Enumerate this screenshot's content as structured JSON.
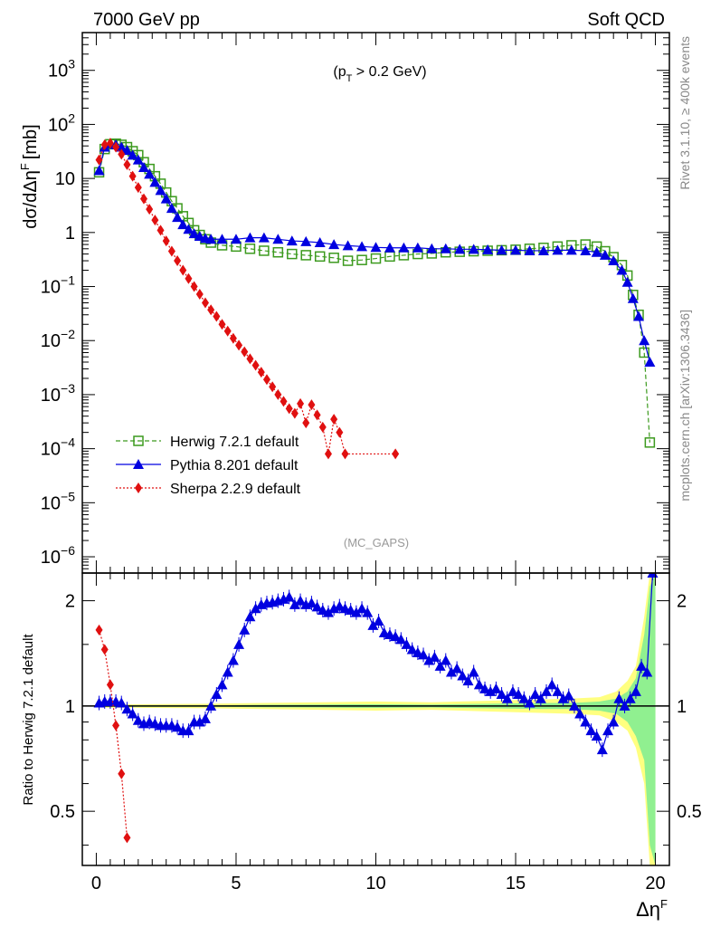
{
  "header": {
    "left": "7000 GeV pp",
    "right": "Soft QCD"
  },
  "side_labels": {
    "rivet": "Rivet 3.1.10, ≥ 400k events",
    "mcplots": "mcplots.cern.ch [arXiv:1306.3436]"
  },
  "watermark": "(MC_GAPS)",
  "colors": {
    "herwig": "#3c9a1e",
    "pythia": "#0000e0",
    "sherpa": "#e01010",
    "band_inner": "#90f090",
    "band_outer": "#ffff80"
  },
  "chart_data": [
    {
      "type": "scatter",
      "panel": "main",
      "ylabel": "dσ/dΔη",
      "ylabel_sup": "F",
      "ylabel_unit": "[mb]",
      "annotation": "(p_T > 0.2 GeV)",
      "annotation_parts": {
        "open": "(p",
        "sub": "T",
        "close": " > 0.2 GeV)"
      },
      "yscale": "log",
      "ylim": [
        5e-07,
        5000
      ],
      "xlim": [
        -0.5,
        20.5
      ],
      "yticks": [
        {
          "v": 1000,
          "label": "10",
          "exp": "3"
        },
        {
          "v": 100,
          "label": "10",
          "exp": "2"
        },
        {
          "v": 10,
          "label": "10",
          "exp": ""
        },
        {
          "v": 1,
          "label": "1",
          "exp": ""
        },
        {
          "v": 0.1,
          "label": "10",
          "exp": "−1"
        },
        {
          "v": 0.01,
          "label": "10",
          "exp": "−2"
        },
        {
          "v": 0.001,
          "label": "10",
          "exp": "−3"
        },
        {
          "v": 0.0001,
          "label": "10",
          "exp": "−4"
        },
        {
          "v": 1e-05,
          "label": "10",
          "exp": "−5"
        },
        {
          "v": 1e-06,
          "label": "10",
          "exp": "−6"
        }
      ],
      "legend_position": "lower-left",
      "series": [
        {
          "key": "herwig",
          "name": "Herwig 7.2.1 default",
          "marker": "open-square",
          "line": "dashed",
          "x": [
            0.1,
            0.3,
            0.5,
            0.7,
            0.9,
            1.1,
            1.3,
            1.5,
            1.7,
            1.9,
            2.1,
            2.3,
            2.5,
            2.7,
            2.9,
            3.1,
            3.3,
            3.5,
            3.7,
            3.9,
            4.1,
            4.5,
            5,
            5.5,
            6,
            6.5,
            7,
            7.5,
            8,
            8.5,
            9,
            9.5,
            10,
            10.5,
            11,
            11.5,
            12,
            12.5,
            13,
            13.5,
            14,
            14.5,
            15,
            15.5,
            16,
            16.5,
            17,
            17.5,
            17.9,
            18.2,
            18.5,
            18.8,
            19.0,
            19.2,
            19.4,
            19.6,
            19.8
          ],
          "y": [
            13,
            35,
            43,
            44,
            42,
            38,
            32,
            27,
            20,
            15,
            11,
            8,
            5.5,
            3.8,
            2.8,
            2,
            1.5,
            1.1,
            0.9,
            0.75,
            0.65,
            0.58,
            0.55,
            0.5,
            0.46,
            0.43,
            0.4,
            0.38,
            0.36,
            0.34,
            0.3,
            0.31,
            0.33,
            0.36,
            0.38,
            0.4,
            0.41,
            0.43,
            0.44,
            0.45,
            0.46,
            0.47,
            0.48,
            0.5,
            0.52,
            0.55,
            0.58,
            0.6,
            0.55,
            0.45,
            0.35,
            0.25,
            0.16,
            0.07,
            0.03,
            0.006,
            0.00013
          ]
        },
        {
          "key": "pythia",
          "name": "Pythia 8.201 default",
          "marker": "triangle",
          "line": "solid",
          "x": [
            0.1,
            0.3,
            0.5,
            0.7,
            0.9,
            1.1,
            1.3,
            1.5,
            1.7,
            1.9,
            2.1,
            2.3,
            2.5,
            2.7,
            2.9,
            3.1,
            3.3,
            3.5,
            3.7,
            3.9,
            4.1,
            4.5,
            5,
            5.5,
            6,
            6.5,
            7,
            7.5,
            8,
            8.5,
            9,
            9.5,
            10,
            10.5,
            11,
            11.5,
            12,
            12.5,
            13,
            13.5,
            14,
            14.5,
            15,
            15.5,
            16,
            16.5,
            17,
            17.5,
            17.9,
            18.2,
            18.5,
            18.8,
            19.0,
            19.2,
            19.4,
            19.6,
            19.8
          ],
          "y": [
            14,
            38,
            44,
            42,
            38,
            33,
            27,
            22,
            16,
            12,
            8.5,
            6,
            4.2,
            2.8,
            1.9,
            1.4,
            1.15,
            0.95,
            0.85,
            0.78,
            0.75,
            0.75,
            0.75,
            0.8,
            0.8,
            0.75,
            0.7,
            0.68,
            0.65,
            0.6,
            0.57,
            0.55,
            0.53,
            0.52,
            0.52,
            0.52,
            0.5,
            0.5,
            0.49,
            0.49,
            0.48,
            0.47,
            0.47,
            0.46,
            0.46,
            0.47,
            0.47,
            0.46,
            0.43,
            0.38,
            0.3,
            0.2,
            0.12,
            0.06,
            0.028,
            0.01,
            0.004
          ]
        },
        {
          "key": "sherpa",
          "name": "Sherpa 2.2.9 default",
          "marker": "diamond",
          "line": "dotted",
          "x": [
            0.1,
            0.3,
            0.5,
            0.7,
            0.9,
            1.1,
            1.3,
            1.5,
            1.7,
            1.9,
            2.1,
            2.3,
            2.5,
            2.7,
            2.9,
            3.1,
            3.3,
            3.5,
            3.7,
            3.9,
            4.1,
            4.3,
            4.5,
            4.7,
            4.9,
            5.1,
            5.3,
            5.5,
            5.7,
            5.9,
            6.1,
            6.3,
            6.5,
            6.7,
            6.9,
            7.1,
            7.3,
            7.5,
            7.7,
            7.9,
            8.1,
            8.3,
            8.5,
            8.7,
            8.9,
            10.7
          ],
          "y": [
            22,
            42,
            45,
            38,
            28,
            18,
            11,
            6.8,
            4.2,
            2.7,
            1.7,
            1.1,
            0.7,
            0.45,
            0.3,
            0.2,
            0.14,
            0.1,
            0.072,
            0.05,
            0.037,
            0.028,
            0.02,
            0.015,
            0.011,
            0.0082,
            0.0062,
            0.0046,
            0.0035,
            0.0026,
            0.0019,
            0.0014,
            0.001,
            0.00075,
            0.00055,
            0.00045,
            0.00068,
            0.0003,
            0.00065,
            0.00042,
            0.00025,
            8e-05,
            0.00035,
            0.0002,
            8e-05,
            8e-05
          ]
        }
      ]
    },
    {
      "type": "scatter",
      "panel": "ratio",
      "ylabel": "Ratio to Herwig 7.2.1 default",
      "xlabel": "Δη",
      "xlabel_sup": "F",
      "yscale": "log",
      "ylim": [
        0.35,
        2.4
      ],
      "xlim": [
        -0.5,
        20.5
      ],
      "xticks": [
        0,
        5,
        10,
        15,
        20
      ],
      "yticks": [
        {
          "v": 0.5,
          "label": "0.5"
        },
        {
          "v": 1,
          "label": "1"
        },
        {
          "v": 2,
          "label": "2"
        }
      ],
      "reference_line": 1,
      "band_inner": {
        "x": [
          0,
          4,
          6,
          8,
          10,
          12,
          14,
          16,
          17,
          18,
          18.6,
          19.0,
          19.3,
          19.6,
          19.8,
          20
        ],
        "hi": [
          1.005,
          1.005,
          1.008,
          1.01,
          1.012,
          1.01,
          1.015,
          1.02,
          1.02,
          1.03,
          1.05,
          1.1,
          1.2,
          1.6,
          2.2,
          2.4
        ],
        "lo": [
          0.995,
          0.995,
          0.992,
          0.99,
          0.988,
          0.99,
          0.985,
          0.98,
          0.98,
          0.97,
          0.95,
          0.9,
          0.82,
          0.7,
          0.4,
          0.35
        ]
      },
      "band_outer": {
        "x": [
          0,
          4,
          6,
          8,
          10,
          12,
          14,
          16,
          17,
          18,
          18.6,
          19.0,
          19.3,
          19.6,
          19.8,
          20
        ],
        "hi": [
          1.01,
          1.015,
          1.02,
          1.025,
          1.03,
          1.025,
          1.035,
          1.045,
          1.05,
          1.06,
          1.1,
          1.18,
          1.3,
          1.8,
          2.4,
          2.4
        ],
        "lo": [
          0.99,
          0.985,
          0.98,
          0.975,
          0.97,
          0.975,
          0.965,
          0.955,
          0.95,
          0.94,
          0.9,
          0.85,
          0.76,
          0.6,
          0.35,
          0.35
        ]
      },
      "series": [
        {
          "key": "pythia",
          "name": "Pythia 8.201 default",
          "marker": "triangle",
          "x": [
            0.1,
            0.3,
            0.5,
            0.7,
            0.9,
            1.1,
            1.3,
            1.5,
            1.7,
            1.9,
            2.1,
            2.3,
            2.5,
            2.7,
            2.9,
            3.1,
            3.3,
            3.5,
            3.7,
            3.9,
            4.1,
            4.3,
            4.5,
            4.7,
            4.9,
            5.1,
            5.3,
            5.5,
            5.7,
            5.9,
            6.1,
            6.3,
            6.5,
            6.7,
            6.9,
            7.1,
            7.3,
            7.5,
            7.7,
            7.9,
            8.1,
            8.3,
            8.5,
            8.7,
            8.9,
            9.1,
            9.3,
            9.5,
            9.7,
            9.9,
            10.1,
            10.3,
            10.5,
            10.7,
            10.9,
            11.1,
            11.3,
            11.5,
            11.7,
            11.9,
            12.1,
            12.3,
            12.5,
            12.7,
            12.9,
            13.1,
            13.3,
            13.5,
            13.7,
            13.9,
            14.1,
            14.3,
            14.5,
            14.7,
            14.9,
            15.1,
            15.3,
            15.5,
            15.7,
            15.9,
            16.1,
            16.3,
            16.5,
            16.7,
            16.9,
            17.1,
            17.3,
            17.5,
            17.7,
            17.9,
            18.1,
            18.3,
            18.5,
            18.7,
            18.9,
            19.1,
            19.3,
            19.5,
            19.7,
            19.9
          ],
          "y": [
            1.02,
            1.03,
            1.03,
            1.03,
            1.02,
            0.98,
            0.95,
            0.91,
            0.89,
            0.9,
            0.89,
            0.88,
            0.88,
            0.88,
            0.87,
            0.85,
            0.85,
            0.9,
            0.9,
            0.92,
            1.0,
            1.08,
            1.15,
            1.25,
            1.35,
            1.5,
            1.65,
            1.8,
            1.9,
            1.95,
            1.97,
            1.98,
            2.0,
            2.02,
            2.05,
            1.95,
            2.0,
            1.95,
            1.97,
            1.92,
            1.88,
            1.85,
            1.9,
            1.93,
            1.9,
            1.88,
            1.85,
            1.9,
            1.85,
            1.7,
            1.75,
            1.62,
            1.6,
            1.58,
            1.55,
            1.5,
            1.45,
            1.42,
            1.4,
            1.35,
            1.38,
            1.3,
            1.35,
            1.25,
            1.28,
            1.22,
            1.18,
            1.25,
            1.15,
            1.12,
            1.1,
            1.12,
            1.08,
            1.05,
            1.1,
            1.08,
            1.05,
            1.02,
            1.08,
            1.05,
            1.1,
            1.15,
            1.1,
            1.05,
            1.07,
            1.0,
            0.95,
            0.9,
            0.85,
            0.82,
            0.75,
            0.85,
            0.9,
            1.05,
            1.0,
            1.05,
            1.1,
            1.3,
            1.25,
            2.4
          ]
        },
        {
          "key": "sherpa",
          "name": "Sherpa 2.2.9 default",
          "marker": "diamond",
          "x": [
            0.1,
            0.3,
            0.5,
            0.7,
            0.9,
            1.1
          ],
          "y": [
            1.65,
            1.45,
            1.15,
            0.88,
            0.64,
            0.42
          ]
        }
      ]
    }
  ]
}
